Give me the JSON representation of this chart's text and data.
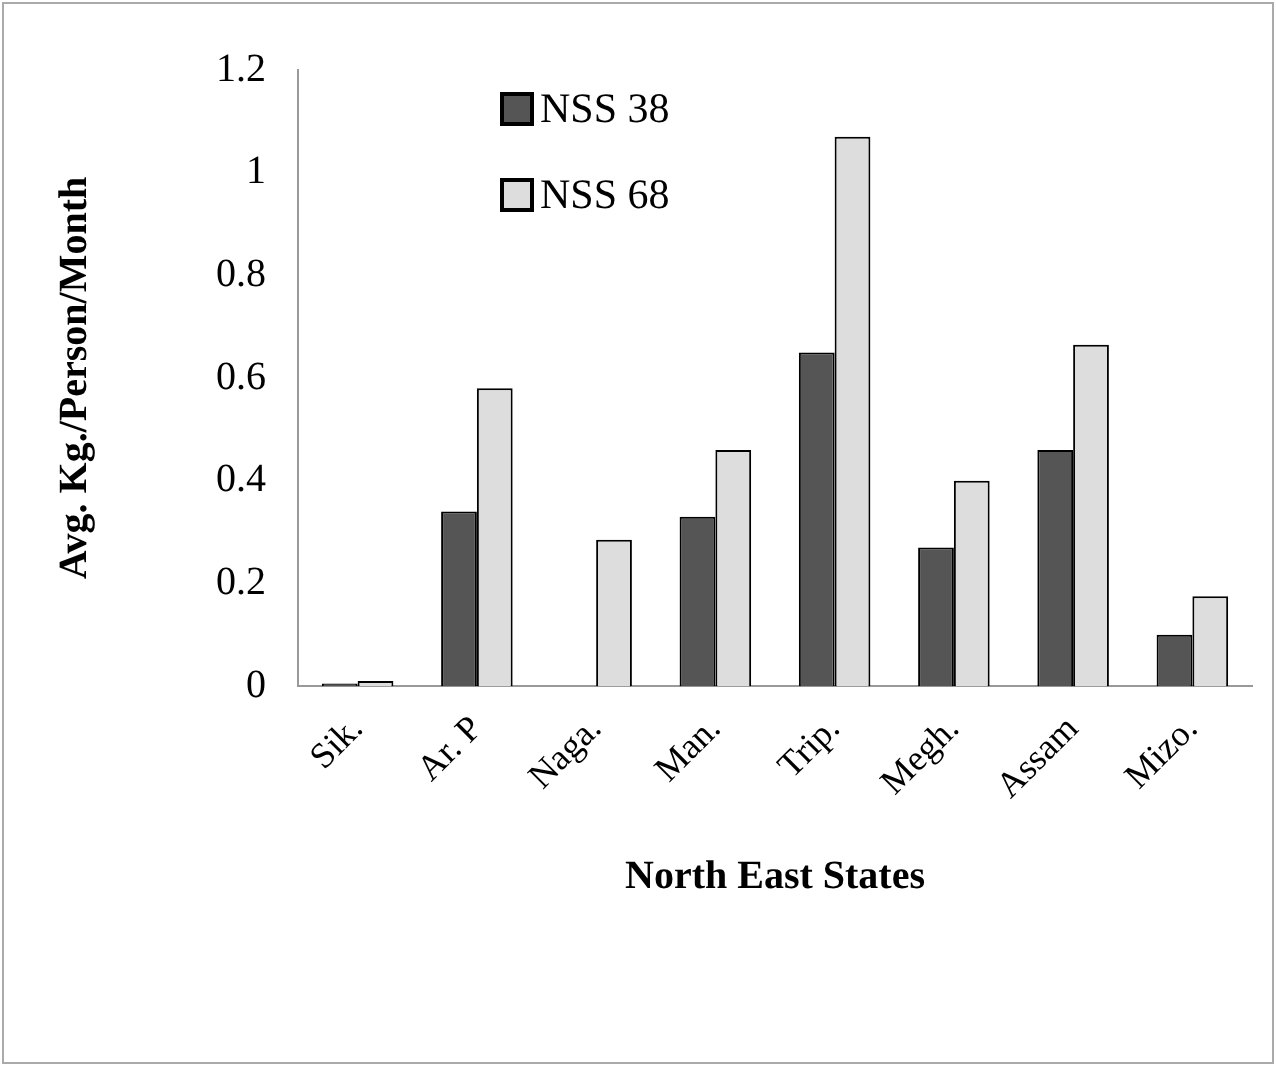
{
  "chart_data": {
    "type": "bar",
    "xlabel": "North East States",
    "ylabel": "Avg. Kg./Person/Month",
    "categories": [
      "Sik.",
      "Ar. P",
      "Naga.",
      "Man.",
      "Trip.",
      "Megh.",
      "Assam",
      "Mizo."
    ],
    "series": [
      {
        "name": "NSS 38",
        "color": "#555555",
        "values": [
          0.005,
          0.34,
          null,
          0.33,
          0.65,
          0.27,
          0.46,
          0.1
        ]
      },
      {
        "name": "NSS 68",
        "color": "#dddddd",
        "values": [
          0.01,
          0.58,
          0.285,
          0.46,
          1.07,
          0.4,
          0.665,
          0.175
        ]
      }
    ],
    "ylim": [
      0,
      1.2
    ],
    "yticks": [
      0,
      0.2,
      0.4,
      0.6,
      0.8,
      1,
      1.2
    ],
    "grid": false,
    "legend": "top left"
  }
}
